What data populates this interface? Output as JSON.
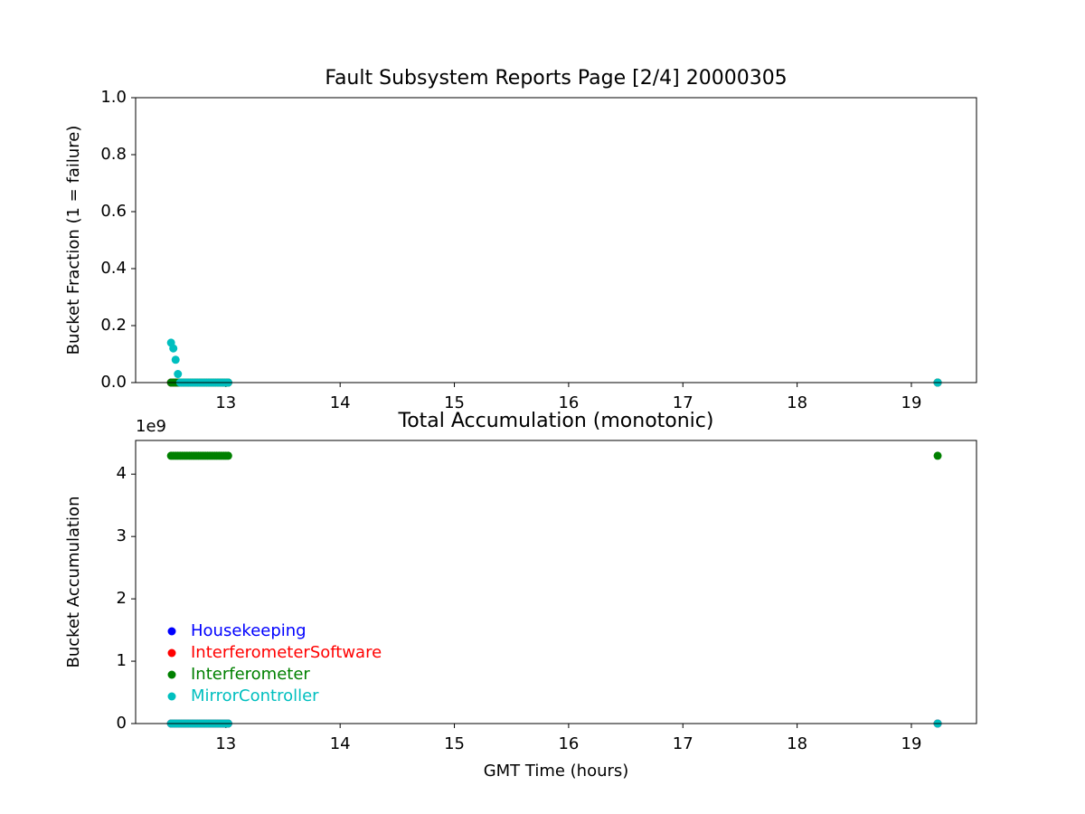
{
  "chart_data": [
    {
      "type": "scatter",
      "title": "Fault Subsystem Reports Page [2/4] 20000305",
      "ylabel": "Bucket Fraction (1 = failure)",
      "x": [
        12.52,
        12.54,
        12.56,
        12.58,
        12.6,
        12.62,
        12.64,
        12.66,
        12.68,
        12.7,
        12.72,
        12.74,
        12.76,
        12.78,
        12.8,
        12.82,
        12.84,
        12.86,
        12.88,
        12.9,
        12.92,
        12.94,
        12.96,
        12.98,
        13.0,
        13.02,
        19.23
      ],
      "xlim": [
        12.21,
        19.57
      ],
      "xticks": [
        13,
        14,
        15,
        16,
        17,
        18,
        19
      ],
      "ylim": [
        0,
        1
      ],
      "yticks": [
        {
          "value": 0,
          "label": "0.0"
        },
        0.2,
        0.4,
        0.6,
        0.8,
        {
          "value": 1,
          "label": "1.0"
        }
      ],
      "series": [
        {
          "color": "#0000ff",
          "values": [
            0,
            0,
            0,
            0,
            0,
            0,
            0,
            0,
            0,
            0,
            0,
            0,
            0,
            0,
            0,
            0,
            0,
            0,
            0,
            0,
            0,
            0,
            0,
            0,
            0,
            0,
            0
          ]
        },
        {
          "color": "#ff0000",
          "values": [
            0,
            0,
            0,
            0,
            0,
            0,
            0,
            0,
            0,
            0,
            0,
            0,
            0,
            0,
            0,
            0,
            0,
            0,
            0,
            0,
            0,
            0,
            0,
            0,
            0,
            0,
            0
          ]
        },
        {
          "color": "#008000",
          "values": [
            0,
            0,
            0,
            0,
            0,
            0,
            0,
            0,
            0,
            0,
            0,
            0,
            0,
            0,
            0,
            0,
            0,
            0,
            0,
            0,
            0,
            0,
            0,
            0,
            0,
            0,
            0
          ]
        },
        {
          "color": "#00bfbf",
          "values": [
            0.14,
            0.12,
            0.08,
            0.03,
            0,
            0,
            0,
            0,
            0,
            0,
            0,
            0,
            0,
            0,
            0,
            0,
            0,
            0,
            0,
            0,
            0,
            0,
            0,
            0,
            0,
            0,
            0
          ]
        }
      ]
    },
    {
      "type": "scatter",
      "title": "Total Accumulation (monotonic)",
      "xlabel": "GMT Time (hours)",
      "ylabel": "Bucket Accumulation",
      "y_offset_label": "1e9",
      "x": [
        12.52,
        12.54,
        12.56,
        12.58,
        12.6,
        12.62,
        12.64,
        12.66,
        12.68,
        12.7,
        12.72,
        12.74,
        12.76,
        12.78,
        12.8,
        12.82,
        12.84,
        12.86,
        12.88,
        12.9,
        12.92,
        12.94,
        12.96,
        12.98,
        13.0,
        13.02,
        19.23
      ],
      "xlim": [
        12.21,
        19.57
      ],
      "xticks": [
        13,
        14,
        15,
        16,
        17,
        18,
        19
      ],
      "ylim": [
        0,
        4540000000
      ],
      "yticks": [
        0,
        {
          "value": 1000000000,
          "label": "1"
        },
        {
          "value": 2000000000,
          "label": "2"
        },
        {
          "value": 3000000000,
          "label": "3"
        },
        {
          "value": 4000000000,
          "label": "4"
        }
      ],
      "legend": "lower left",
      "series": [
        {
          "name": "Housekeeping",
          "color": "#0000ff",
          "values": [
            0,
            0,
            0,
            0,
            0,
            0,
            0,
            0,
            0,
            0,
            0,
            0,
            0,
            0,
            0,
            0,
            0,
            0,
            0,
            0,
            0,
            0,
            0,
            0,
            0,
            0,
            0
          ]
        },
        {
          "name": "InterferometerSoftware",
          "color": "#ff0000",
          "values": [
            0,
            0,
            0,
            0,
            0,
            0,
            0,
            0,
            0,
            0,
            0,
            0,
            0,
            0,
            0,
            0,
            0,
            0,
            0,
            0,
            0,
            0,
            0,
            0,
            0,
            0,
            0
          ]
        },
        {
          "name": "Interferometer",
          "color": "#008000",
          "values": [
            4295000000,
            4295000000,
            4295000000,
            4295000000,
            4295000000,
            4295000000,
            4295000000,
            4295000000,
            4295000000,
            4295000000,
            4295000000,
            4295000000,
            4295000000,
            4295000000,
            4295000000,
            4295000000,
            4295000000,
            4295000000,
            4295000000,
            4295000000,
            4295000000,
            4295000000,
            4295000000,
            4295000000,
            4295000000,
            4295000000,
            4295000000
          ]
        },
        {
          "name": "MirrorController",
          "color": "#00bfbf",
          "values": [
            0,
            0,
            0,
            0,
            0,
            0,
            0,
            0,
            0,
            0,
            0,
            0,
            0,
            0,
            0,
            0,
            0,
            0,
            0,
            0,
            0,
            0,
            0,
            0,
            0,
            0,
            0
          ]
        }
      ]
    }
  ]
}
